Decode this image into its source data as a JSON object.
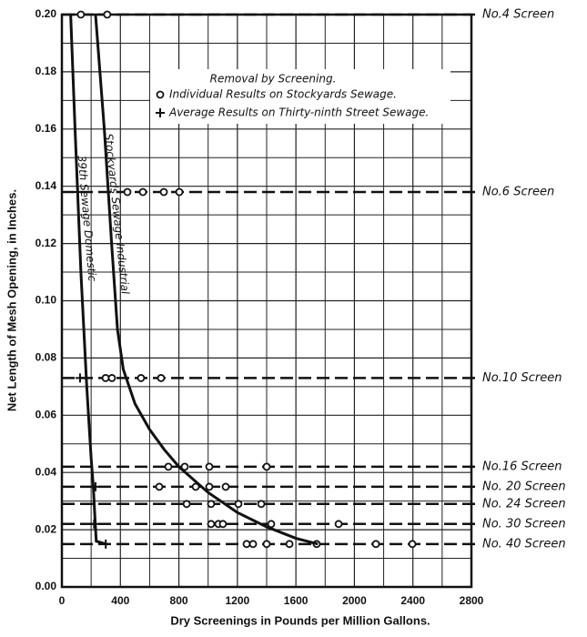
{
  "chart_data": {
    "type": "scatter",
    "xlabel": "Dry Screenings in Pounds per Million Gallons.",
    "ylabel": "Net Length of Mesh Opening, in Inches.",
    "xlim": [
      0,
      2800
    ],
    "ylim": [
      0,
      0.2
    ],
    "xticks": [
      0,
      400,
      800,
      1200,
      1600,
      2000,
      2400,
      2800
    ],
    "yticks": [
      {
        "value": 0,
        "label": "0.00"
      },
      0.02,
      0.04,
      0.06,
      0.08,
      {
        "value": 0.1,
        "label": "0.10"
      },
      0.12,
      0.14,
      0.16,
      0.18,
      {
        "value": 0.2,
        "label": "0.20"
      }
    ],
    "minor_xticks": [
      200,
      600,
      1000,
      1400,
      1800,
      2200,
      2600
    ],
    "minor_yticks": [
      0.01,
      0.03,
      0.05,
      0.07,
      0.09,
      0.11,
      0.13,
      0.15,
      0.17,
      0.19
    ],
    "grid": true,
    "legend_title": "Removal by Screening.",
    "reference_lines": [
      {
        "label": "No.4 Screen",
        "value": 0.2
      },
      {
        "label": "No.6 Screen",
        "value": 0.138
      },
      {
        "label": "No.10 Screen",
        "value": 0.073
      },
      {
        "label": "No.16 Screen",
        "value": 0.042
      },
      {
        "label": "No. 20 Screen",
        "value": 0.035
      },
      {
        "label": "No. 24 Screen",
        "value": 0.029
      },
      {
        "label": "No. 30 Screen",
        "value": 0.022
      },
      {
        "label": "No. 40 Screen",
        "value": 0.015
      }
    ],
    "series": [
      {
        "name": "Individual Results on Stockyards Sewage.",
        "mode": "markers",
        "marker": "circle",
        "color": "#111111",
        "x": [
          130,
          310,
          448,
          554,
          697,
          803,
          299,
          342,
          541,
          678,
          728,
          840,
          1008,
          1400,
          666,
          915,
          1008,
          1120,
          853,
          1020,
          1207,
          1363,
          1020,
          1070,
          1101,
          1431,
          1892,
          1263,
          1307,
          1400,
          1556,
          1742,
          2147,
          2396
        ],
        "values": [
          0.2,
          0.2,
          0.138,
          0.138,
          0.138,
          0.138,
          0.073,
          0.073,
          0.073,
          0.073,
          0.042,
          0.042,
          0.042,
          0.042,
          0.035,
          0.035,
          0.035,
          0.035,
          0.029,
          0.029,
          0.029,
          0.029,
          0.022,
          0.022,
          0.022,
          0.022,
          0.022,
          0.015,
          0.015,
          0.015,
          0.015,
          0.015,
          0.015,
          0.015
        ]
      },
      {
        "name": "Average Results on Thirty-ninth Street Sewage.",
        "mode": "markers",
        "marker": "plus",
        "color": "#111111",
        "x": [
          110,
          124,
          230,
          220,
          300
        ],
        "values": [
          0.138,
          0.073,
          0.035,
          0.022,
          0.015
        ]
      },
      {
        "name": "Stockyards Sewage Industrial",
        "mode": "line",
        "color": "#111111",
        "x": [
          230,
          290,
          340,
          380,
          420,
          500,
          600,
          700,
          800,
          1000,
          1200,
          1400,
          1600,
          1750
        ],
        "values": [
          0.2,
          0.16,
          0.12,
          0.09,
          0.076,
          0.064,
          0.055,
          0.048,
          0.042,
          0.033,
          0.026,
          0.021,
          0.017,
          0.015
        ]
      },
      {
        "name": "39th Sewage Domestic",
        "mode": "line",
        "color": "#111111",
        "x": [
          60,
          90,
          130,
          170,
          200,
          215,
          225,
          235,
          300
        ],
        "values": [
          0.2,
          0.16,
          0.11,
          0.07,
          0.045,
          0.035,
          0.025,
          0.016,
          0.015
        ]
      }
    ]
  }
}
